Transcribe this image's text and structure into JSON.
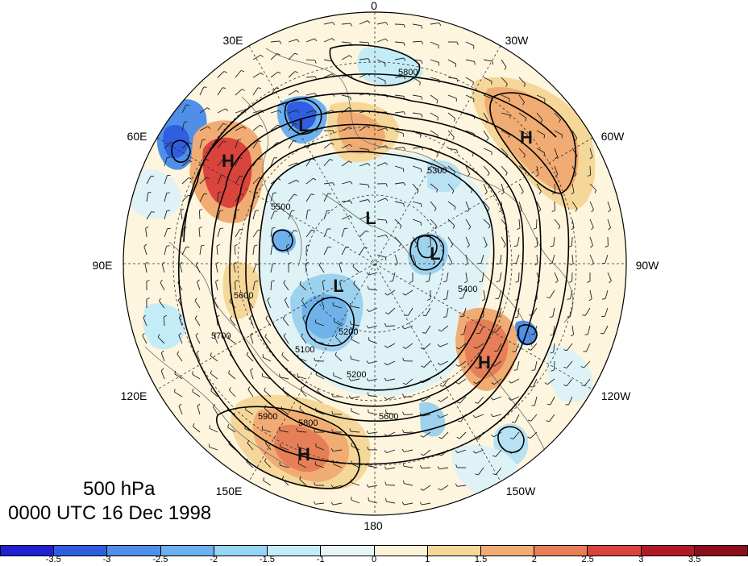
{
  "map": {
    "projection": "north-polar-stereographic",
    "title_level": "500 hPa",
    "title_time": "0000 UTC 16 Dec 1998",
    "longitude_labels": [
      "0",
      "30W",
      "60W",
      "90W",
      "120W",
      "150W",
      "180",
      "150E",
      "120E",
      "90E",
      "60E",
      "30E"
    ],
    "contour_labels": [
      "5800",
      "5300",
      "5500",
      "5200",
      "5400",
      "5600",
      "5700",
      "5800",
      "5900",
      "5100",
      "5200",
      "5600"
    ],
    "highs": [
      "H",
      "H",
      "H",
      "H"
    ],
    "lows": [
      "L",
      "L",
      "L",
      "L"
    ],
    "colors": {
      "contour": "#000000",
      "land": "#555555",
      "background": "#ffffff"
    }
  },
  "colorbar": {
    "tick_labels": [
      "-3.5",
      "-3",
      "-2.5",
      "-2",
      "-1.5",
      "-1",
      "0",
      "1",
      "1.5",
      "2",
      "2.5",
      "3",
      "3.5"
    ],
    "colors": [
      "#2020d0",
      "#2f5fe0",
      "#4f8fe8",
      "#6cb0ee",
      "#93d5f2",
      "#c4ecf6",
      "#e6f6f7",
      "#faf3d6",
      "#f6d79a",
      "#f0ac72",
      "#e67f58",
      "#d9443c",
      "#b01a24",
      "#8c0d1c"
    ]
  }
}
